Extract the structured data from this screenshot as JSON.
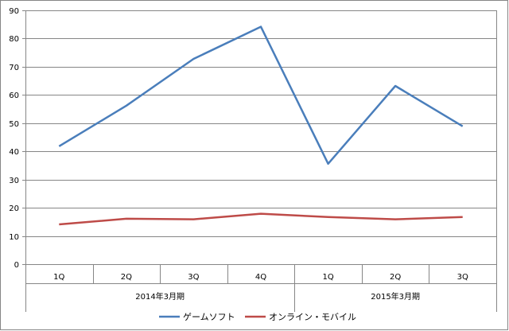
{
  "chart_data": {
    "type": "line",
    "categories": [
      "1Q",
      "2Q",
      "3Q",
      "4Q",
      "1Q",
      "2Q",
      "3Q"
    ],
    "groups": [
      {
        "label": "2014年3月期",
        "span": 4
      },
      {
        "label": "2015年3月期",
        "span": 3
      }
    ],
    "series": [
      {
        "name": "ゲームソフト",
        "color": "#4a7ebb",
        "values": [
          41.8,
          56.2,
          72.8,
          84.2,
          35.6,
          63.2,
          48.9
        ]
      },
      {
        "name": "オンライン・モバイル",
        "color": "#be4b48",
        "values": [
          14.1,
          16.1,
          15.9,
          17.9,
          16.7,
          15.9,
          16.7
        ]
      }
    ],
    "ylim": [
      0,
      90
    ],
    "yticks": [
      0,
      10,
      20,
      30,
      40,
      50,
      60,
      70,
      80,
      90
    ],
    "grid": true,
    "legend_position": "bottom"
  }
}
